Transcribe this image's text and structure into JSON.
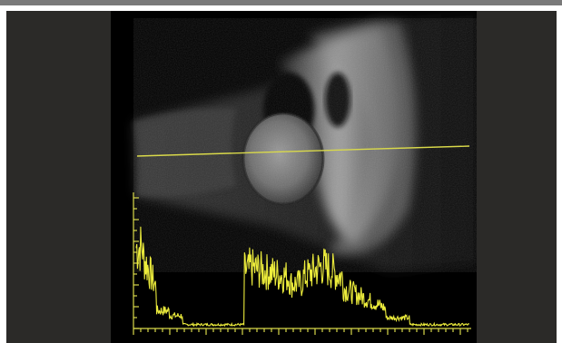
{
  "colors": {
    "page": "#ffffff",
    "top_bar": "#7a7a7a",
    "side_panels": "#2b2a28",
    "scan_background": "#000000",
    "scan_line": "#d9d94a",
    "a_scan_trace": "#ecec3c",
    "axis": "#d9d94a"
  },
  "image": {
    "kind": "ultrasound-b-scan-with-a-scan-overlay"
  },
  "a_scan": {
    "peak_levels": [
      0.78,
      0.7,
      0.0,
      0.62,
      0.6,
      0.55,
      0.68,
      0.4,
      0.12,
      0.0
    ],
    "axis_ticks_visible": true
  }
}
